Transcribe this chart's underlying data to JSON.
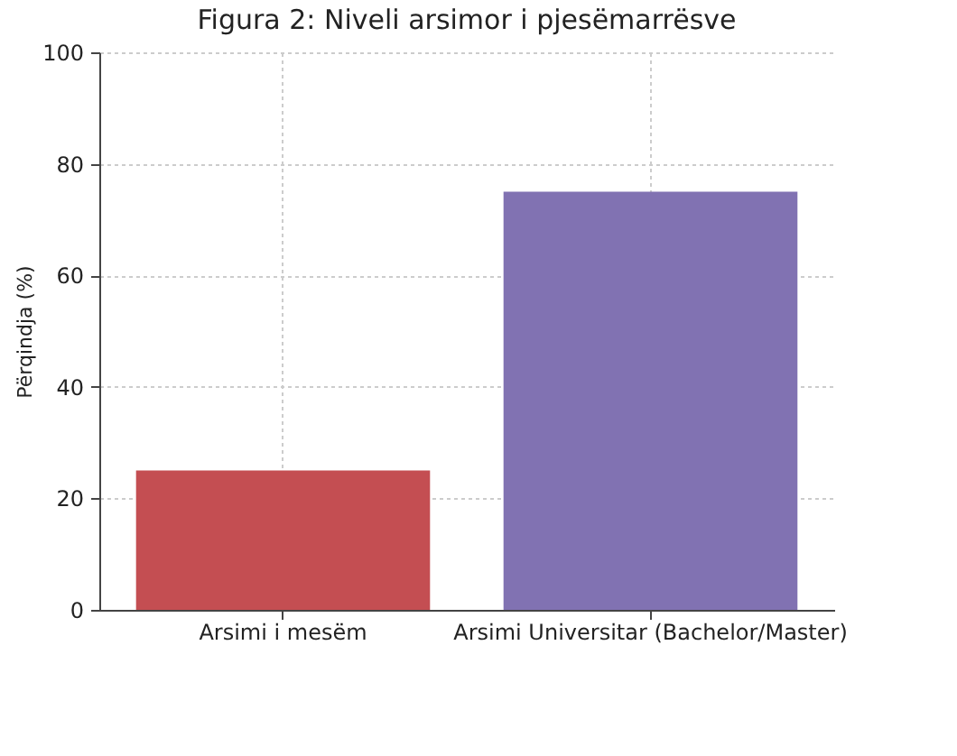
{
  "chart_data": {
    "type": "bar",
    "title": "Figura 2: Niveli arsimor i pjesëmarrësve",
    "ylabel": "Përqindja (%)",
    "categories": [
      "Arsimi i mesëm",
      "Arsimi Universitar (Bachelor/Master)"
    ],
    "values": [
      25,
      75
    ],
    "colors": [
      "#c44e52",
      "#8172b2"
    ],
    "ylim": [
      0,
      100
    ],
    "yticks": [
      0,
      20,
      40,
      60,
      80,
      100
    ],
    "grid": true
  }
}
